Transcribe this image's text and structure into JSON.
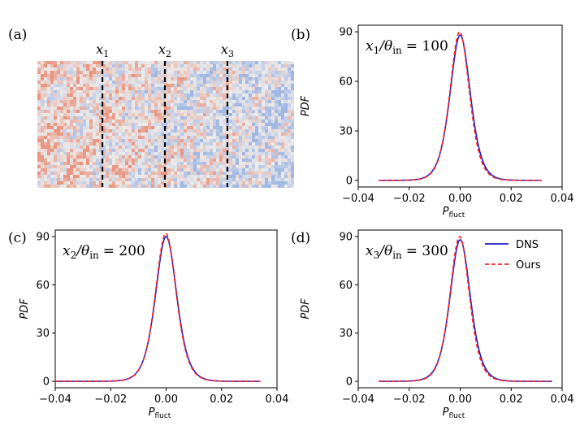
{
  "field_panel": {
    "label": "(a)",
    "lines": [
      {
        "name": "x",
        "sub": "1",
        "pos": 0.255
      },
      {
        "name": "x",
        "sub": "2",
        "pos": 0.5
      },
      {
        "name": "x",
        "sub": "3",
        "pos": 0.745
      }
    ],
    "colors": {
      "positive": "#e8785e",
      "negative": "#6f95e0",
      "neutral": "#ecebea"
    }
  },
  "legend": {
    "entries": [
      {
        "label": "DNS",
        "color": "#1f1fc8",
        "style": "solid"
      },
      {
        "label": "Ours",
        "color": "#ff2020",
        "style": "dashed"
      }
    ]
  },
  "chart_data": [
    {
      "type": "line",
      "panel": "(b)",
      "annotation": {
        "var": "x",
        "sub": "1",
        "ratio": "/θ",
        "ratio_sub": "in",
        "value": "= 100"
      },
      "xlabel": "P",
      "xlabel_sub": "fluct",
      "ylabel": "PDF",
      "xlim": [
        -0.04,
        0.04
      ],
      "ylim": [
        -4,
        94
      ],
      "xticks": [
        "−0.04",
        "−0.02",
        "0.00",
        "0.02",
        "0.04"
      ],
      "yticks": [
        "0",
        "30",
        "60",
        "90"
      ],
      "ytick_values": [
        0,
        30,
        60,
        90
      ],
      "xtick_values": [
        -0.04,
        -0.02,
        0.0,
        0.02,
        0.04
      ],
      "x_range": [
        -0.032,
        0.032
      ],
      "series": [
        {
          "name": "DNS",
          "peak": 88,
          "mu": 0.0,
          "sigma": 0.0048
        },
        {
          "name": "Ours",
          "peak": 90,
          "mu": -0.0002,
          "sigma": 0.0046
        }
      ]
    },
    {
      "type": "line",
      "panel": "(c)",
      "annotation": {
        "var": "x",
        "sub": "2",
        "ratio": "/θ",
        "ratio_sub": "in",
        "value": "= 200"
      },
      "xlabel": "P",
      "xlabel_sub": "fluct",
      "ylabel": "PDF",
      "xlim": [
        -0.04,
        0.04
      ],
      "ylim": [
        -4,
        94
      ],
      "xticks": [
        "−0.04",
        "−0.02",
        "0.00",
        "0.02",
        "0.04"
      ],
      "yticks": [
        "0",
        "30",
        "60",
        "90"
      ],
      "ytick_values": [
        0,
        30,
        60,
        90
      ],
      "xtick_values": [
        -0.04,
        -0.02,
        0.0,
        0.02,
        0.04
      ],
      "x_range": [
        -0.04,
        0.034
      ],
      "series": [
        {
          "name": "DNS",
          "peak": 90,
          "mu": 0.0,
          "sigma": 0.0046
        },
        {
          "name": "Ours",
          "peak": 92,
          "mu": -0.0001,
          "sigma": 0.0045
        }
      ]
    },
    {
      "type": "line",
      "panel": "(d)",
      "annotation": {
        "var": "x",
        "sub": "3",
        "ratio": "/θ",
        "ratio_sub": "in",
        "value": "= 300"
      },
      "xlabel": "P",
      "xlabel_sub": "fluct",
      "ylabel": "PDF",
      "xlim": [
        -0.04,
        0.04
      ],
      "ylim": [
        -4,
        94
      ],
      "xticks": [
        "−0.04",
        "−0.02",
        "0.00",
        "0.02",
        "0.04"
      ],
      "yticks": [
        "0",
        "30",
        "60",
        "90"
      ],
      "ytick_values": [
        0,
        30,
        60,
        90
      ],
      "xtick_values": [
        -0.04,
        -0.02,
        0.0,
        0.02,
        0.04
      ],
      "x_range": [
        -0.032,
        0.036
      ],
      "series": [
        {
          "name": "DNS",
          "peak": 88,
          "mu": 0.0,
          "sigma": 0.0048
        },
        {
          "name": "Ours",
          "peak": 90,
          "mu": -0.0002,
          "sigma": 0.0046
        }
      ]
    }
  ]
}
